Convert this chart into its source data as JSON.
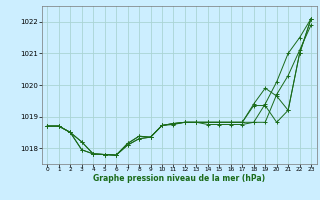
{
  "title": "Graphe pression niveau de la mer (hPa)",
  "bg_color": "#cceeff",
  "grid_color": "#aad4d4",
  "line_color": "#1a6b1a",
  "xlim": [
    -0.5,
    23.5
  ],
  "ylim": [
    1017.5,
    1022.5
  ],
  "yticks": [
    1018,
    1019,
    1020,
    1021,
    1022
  ],
  "xticks": [
    0,
    1,
    2,
    3,
    4,
    5,
    6,
    7,
    8,
    9,
    10,
    11,
    12,
    13,
    14,
    15,
    16,
    17,
    18,
    19,
    20,
    21,
    22,
    23
  ],
  "series": [
    [
      1018.7,
      1018.7,
      1018.5,
      1017.95,
      1017.82,
      1017.8,
      1017.78,
      1018.15,
      1018.38,
      1018.35,
      1018.72,
      1018.78,
      1018.82,
      1018.82,
      1018.82,
      1018.82,
      1018.82,
      1018.82,
      1018.82,
      1018.82,
      1019.7,
      1020.3,
      1021.1,
      1021.9
    ],
    [
      1018.7,
      1018.7,
      1018.5,
      1017.95,
      1017.82,
      1017.8,
      1017.78,
      1018.15,
      1018.38,
      1018.35,
      1018.72,
      1018.75,
      1018.82,
      1018.82,
      1018.75,
      1018.75,
      1018.75,
      1018.75,
      1018.82,
      1019.4,
      1020.1,
      1021.0,
      1021.5,
      1022.1
    ],
    [
      1018.7,
      1018.7,
      1018.5,
      1018.2,
      1017.82,
      1017.8,
      1017.78,
      1018.1,
      1018.3,
      1018.35,
      1018.72,
      1018.78,
      1018.82,
      1018.82,
      1018.82,
      1018.82,
      1018.82,
      1018.82,
      1019.4,
      1019.9,
      1019.65,
      1019.2,
      1021.0,
      1022.1
    ],
    [
      1018.7,
      1018.7,
      1018.5,
      1018.2,
      1017.82,
      1017.8,
      1017.78,
      1018.1,
      1018.3,
      1018.35,
      1018.72,
      1018.78,
      1018.82,
      1018.82,
      1018.82,
      1018.82,
      1018.82,
      1018.82,
      1019.35,
      1019.35,
      1018.82,
      1019.2,
      1021.0,
      1022.1
    ]
  ]
}
